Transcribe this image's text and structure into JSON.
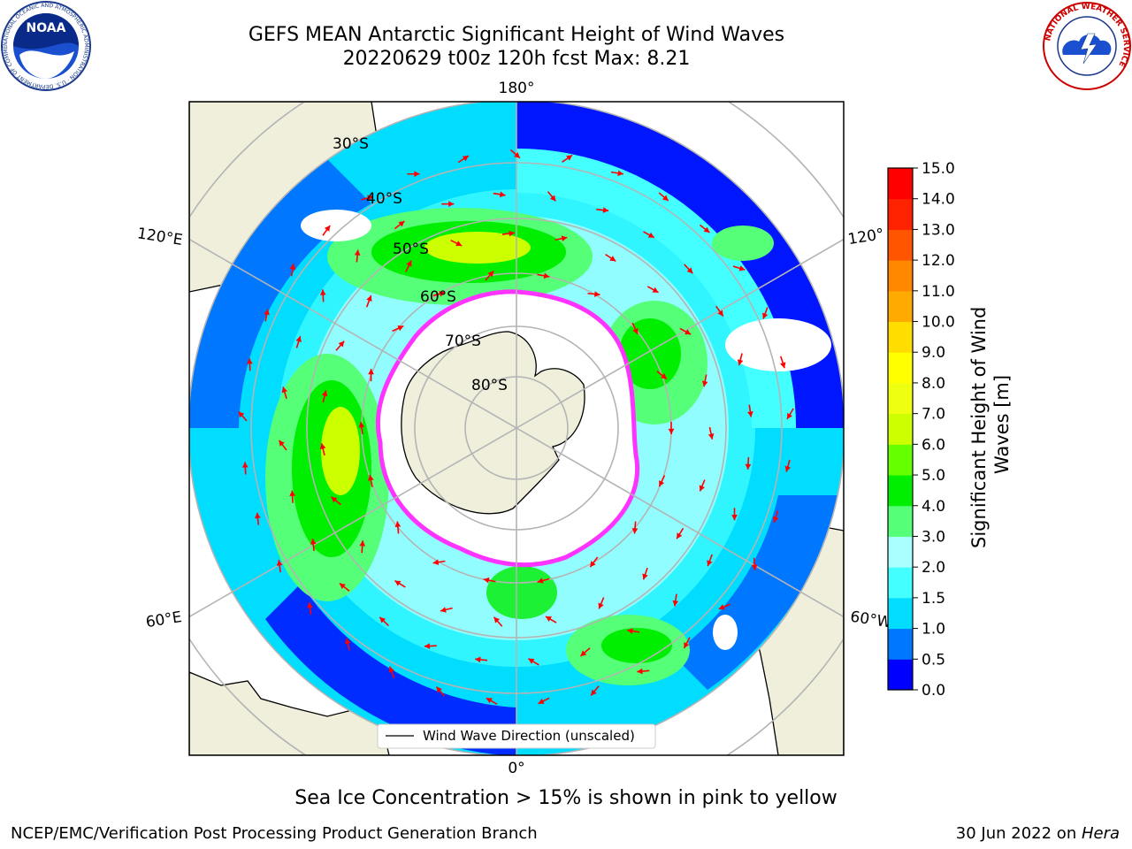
{
  "title": {
    "line1": "GEFS MEAN Antarctic Significant Height of Wind Waves",
    "line2": "20220629 t00z 120h fcst   Max: 8.21"
  },
  "map": {
    "projection": "south-polar-stereographic",
    "longitude_labels": {
      "top": "180°",
      "upper_left": "120°E",
      "upper_right": "120°",
      "lower_left": "60°E",
      "lower_right": "60°W",
      "bottom": "0°"
    },
    "latitude_labels": [
      "30°S",
      "40°S",
      "50°S",
      "60°S",
      "70°S",
      "80°S"
    ],
    "legend_label": "Wind Wave Direction (unscaled)",
    "land_color": "#efefdc",
    "arrow_color": "#ff0000",
    "sea_ice_color": "#ff33ff"
  },
  "colorbar": {
    "label_line1": "Significant Height of Wind",
    "label_line2": "Waves [m]",
    "ticks": [
      "0.0",
      "0.5",
      "1.0",
      "1.5",
      "2.0",
      "3.0",
      "4.0",
      "5.0",
      "6.0",
      "7.0",
      "8.0",
      "9.0",
      "10.0",
      "11.0",
      "12.0",
      "13.0",
      "14.0",
      "15.0"
    ],
    "colors": [
      "#0000ff",
      "#0077ff",
      "#00ddff",
      "#44ffff",
      "#aaffff",
      "#55ff77",
      "#00ee00",
      "#66ff00",
      "#ccff00",
      "#eeff11",
      "#ffff00",
      "#ffdd00",
      "#ffaa00",
      "#ff8800",
      "#ff5500",
      "#ff2200",
      "#ff0000"
    ]
  },
  "footer": {
    "note": "Sea Ice Concentration > 15% is shown in pink to yellow",
    "credit": "NCEP/EMC/Verification Post Processing Product Generation Branch",
    "date_text": "30 Jun 2022 on ",
    "date_machine": "Hera"
  },
  "logos": {
    "noaa_text": "NOAA",
    "noaa_ring_text": "NATIONAL OCEANIC AND ATMOSPHERIC ADMINISTRATION · U.S. DEPARTMENT OF COMMERCE",
    "nws_ring_text": "NATIONAL WEATHER SERVICE"
  }
}
